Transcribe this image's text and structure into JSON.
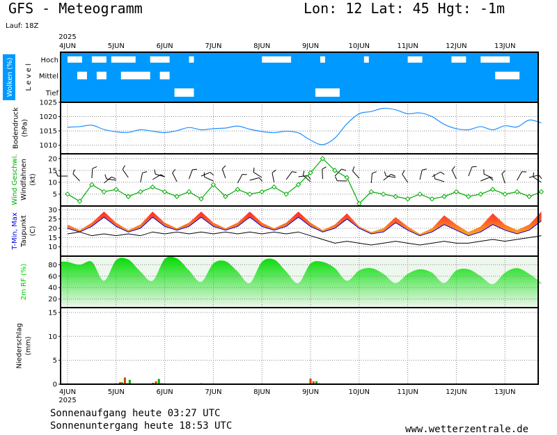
{
  "header": {
    "title": "GFS - Meteogramm",
    "location": "Lon: 12 Lat: 45 Hgt: -1m",
    "run": "Lauf: 18Z",
    "year": "2025"
  },
  "footer": {
    "sunrise": "Sonnenaufgang heute 03:27 UTC",
    "sunset": "Sonnenuntergang heute 18:53 UTC",
    "website": "www.wetterzentrale.de"
  },
  "colors": {
    "cloud_bg": "#0099ff",
    "pressure": "#1e90ff",
    "wind": "#00aa00",
    "tmin": "#0000dd",
    "tmax": "#ee2222",
    "humidity": "#00cc00",
    "precip_rain": "#cc4400",
    "precip_conv": "#00aa00"
  },
  "chart_data": [
    {
      "type": "heatmap",
      "panel": "clouds",
      "ylabel": "Wolken (%)",
      "level_label": "Level",
      "levels": [
        "Hoch",
        "Mittel",
        "Tief"
      ],
      "x": [
        "4JUN",
        "5JUN",
        "6JUN",
        "7JUN",
        "8JUN",
        "9JUN",
        "10JUN",
        "11JUN",
        "12JUN",
        "13JUN"
      ],
      "clear_gaps": {
        "Hoch": [
          [
            0.0,
            0.3
          ],
          [
            0.5,
            0.8
          ],
          [
            0.9,
            1.4
          ],
          [
            1.7,
            2.1
          ],
          [
            2.5,
            2.6
          ],
          [
            4.0,
            4.6
          ],
          [
            5.2,
            5.3
          ],
          [
            6.1,
            6.2
          ],
          [
            7.0,
            7.3
          ],
          [
            7.9,
            8.2
          ],
          [
            8.5,
            9.1
          ]
        ],
        "Mittel": [
          [
            0.2,
            0.4
          ],
          [
            0.6,
            0.8
          ],
          [
            1.1,
            1.7
          ],
          [
            1.9,
            2.1
          ],
          [
            8.8,
            9.3
          ]
        ],
        "Tief": [
          [
            2.2,
            2.6
          ],
          [
            5.1,
            5.6
          ]
        ]
      }
    },
    {
      "type": "line",
      "panel": "pressure",
      "ylabel": "Bodendruck (hPa)",
      "ylim": [
        1007,
        1025
      ],
      "yticks": [
        1010,
        1015,
        1020,
        1025
      ],
      "x_days": [
        0.0,
        0.25,
        0.5,
        0.75,
        1.0,
        1.25,
        1.5,
        1.75,
        2.0,
        2.25,
        2.5,
        2.75,
        3.0,
        3.25,
        3.5,
        3.75,
        4.0,
        4.25,
        4.5,
        4.75,
        5.0,
        5.25,
        5.5,
        5.75,
        6.0,
        6.25,
        6.5,
        6.75,
        7.0,
        7.25,
        7.5,
        7.75,
        8.0,
        8.25,
        8.5,
        8.75,
        9.0,
        9.25,
        9.5,
        9.75
      ],
      "values": [
        1016.3,
        1016.5,
        1017.0,
        1015.5,
        1014.7,
        1014.5,
        1015.4,
        1014.9,
        1014.4,
        1015.1,
        1016.2,
        1015.4,
        1015.8,
        1016.0,
        1016.7,
        1015.6,
        1014.8,
        1014.4,
        1014.9,
        1014.3,
        1011.8,
        1010.2,
        1012.5,
        1017.5,
        1021.0,
        1021.8,
        1022.9,
        1022.4,
        1021.0,
        1021.3,
        1020.0,
        1017.3,
        1015.8,
        1015.4,
        1016.5,
        1015.4,
        1016.8,
        1016.4,
        1018.8,
        1017.8
      ]
    },
    {
      "type": "line",
      "panel": "wind",
      "ylabel": [
        "Wind Geschwi.",
        "Windfahnen",
        "(kt)"
      ],
      "ylim": [
        0,
        22
      ],
      "yticks": [
        5,
        10,
        15,
        20
      ],
      "x_days": [
        0.0,
        0.25,
        0.5,
        0.75,
        1.0,
        1.25,
        1.5,
        1.75,
        2.0,
        2.25,
        2.5,
        2.75,
        3.0,
        3.25,
        3.5,
        3.75,
        4.0,
        4.25,
        4.5,
        4.75,
        5.0,
        5.25,
        5.5,
        5.75,
        6.0,
        6.25,
        6.5,
        6.75,
        7.0,
        7.25,
        7.5,
        7.75,
        8.0,
        8.25,
        8.5,
        8.75,
        9.0,
        9.25,
        9.5,
        9.75
      ],
      "values": [
        5,
        2,
        9,
        6,
        7,
        4,
        6,
        8,
        6,
        4,
        6,
        3,
        9,
        4,
        7,
        5,
        6,
        8,
        5,
        9,
        14,
        20,
        15,
        12,
        1,
        6,
        5,
        4,
        3,
        5,
        3,
        4,
        6,
        4,
        5,
        7,
        5,
        6,
        4,
        6
      ]
    },
    {
      "type": "area",
      "panel": "temperature",
      "ylabel": [
        "T-Min, Max",
        "Taupunkt",
        "(C)"
      ],
      "ylim": [
        5,
        32
      ],
      "yticks": [
        10,
        15,
        20,
        25,
        30
      ],
      "x_days": [
        0.0,
        0.25,
        0.5,
        0.75,
        1.0,
        1.25,
        1.5,
        1.75,
        2.0,
        2.25,
        2.5,
        2.75,
        3.0,
        3.25,
        3.5,
        3.75,
        4.0,
        4.25,
        4.5,
        4.75,
        5.0,
        5.25,
        5.5,
        5.75,
        6.0,
        6.25,
        6.5,
        6.75,
        7.0,
        7.25,
        7.5,
        7.75,
        8.0,
        8.25,
        8.5,
        8.75,
        9.0,
        9.25,
        9.5,
        9.75
      ],
      "series": [
        {
          "name": "T-Min",
          "values": [
            20,
            18,
            21,
            26,
            21,
            18,
            20,
            26,
            21,
            19,
            21,
            26,
            21,
            19,
            21,
            26,
            21,
            19,
            21,
            26,
            21,
            18,
            20,
            25,
            20,
            17,
            18,
            23,
            19,
            16,
            18,
            22,
            19,
            16,
            18,
            22,
            19,
            17,
            19,
            24
          ]
        },
        {
          "name": "Max",
          "values": [
            22,
            19,
            23,
            29,
            23,
            19,
            22,
            29,
            23,
            20,
            23,
            29,
            23,
            20,
            23,
            29,
            23,
            20,
            23,
            29,
            23,
            19,
            22,
            28,
            21,
            18,
            20,
            26,
            21,
            17,
            20,
            27,
            22,
            18,
            21,
            28,
            22,
            19,
            22,
            29
          ]
        },
        {
          "name": "Taupunkt",
          "values": [
            17,
            18,
            16,
            17,
            16,
            17,
            16,
            18,
            17,
            18,
            17,
            18,
            17,
            18,
            17,
            18,
            17,
            18,
            17,
            18,
            16,
            14,
            12,
            13,
            12,
            11,
            12,
            13,
            12,
            11,
            12,
            13,
            12,
            12,
            13,
            14,
            13,
            14,
            15,
            16
          ]
        }
      ]
    },
    {
      "type": "area",
      "panel": "humidity",
      "ylabel": "2m RF (%)",
      "ylim": [
        5,
        95
      ],
      "yticks": [
        20,
        40,
        60,
        80
      ],
      "x_days": [
        0.0,
        0.25,
        0.5,
        0.75,
        1.0,
        1.25,
        1.5,
        1.75,
        2.0,
        2.25,
        2.5,
        2.75,
        3.0,
        3.25,
        3.5,
        3.75,
        4.0,
        4.25,
        4.5,
        4.75,
        5.0,
        5.25,
        5.5,
        5.75,
        6.0,
        6.25,
        6.5,
        6.75,
        7.0,
        7.25,
        7.5,
        7.75,
        8.0,
        8.25,
        8.5,
        8.75,
        9.0,
        9.25,
        9.5,
        9.75
      ],
      "values": [
        85,
        80,
        85,
        52,
        88,
        89,
        68,
        52,
        90,
        91,
        70,
        50,
        82,
        86,
        68,
        48,
        85,
        89,
        68,
        48,
        82,
        85,
        74,
        52,
        70,
        74,
        64,
        48,
        64,
        72,
        66,
        48,
        70,
        72,
        60,
        46,
        66,
        74,
        64,
        48
      ]
    },
    {
      "type": "bar",
      "panel": "precipitation",
      "ylabel": [
        "Niederschlag",
        "(mm)"
      ],
      "ylim": [
        0,
        16
      ],
      "yticks": [
        0,
        5,
        10,
        15
      ],
      "x_days": [
        1.08,
        1.12,
        1.18,
        1.23,
        1.28,
        1.76,
        1.82,
        1.88,
        1.94,
        2.75,
        3.0,
        5.0,
        5.06,
        5.12,
        5.18,
        5.26
      ],
      "values": [
        0.4,
        0.4,
        1.4,
        0.2,
        0.9,
        0.3,
        0.6,
        1.1,
        0.2,
        0.2,
        0.15,
        1.2,
        0.6,
        0.6,
        0.2,
        0.15
      ]
    }
  ]
}
